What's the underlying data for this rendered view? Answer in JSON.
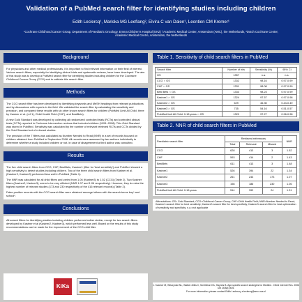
{
  "header": {
    "title": "Validation of a PubMed search filter for identifying studies including children",
    "authors": "Edith Leclercq¹, Mariska MG Leeflang², Elvira C van Dalen¹, Leontien CM Kremer¹",
    "affiliation": "¹Cochrane Childhood Cancer Group, Department of Paediatric Oncology, Emma Children's Hospital (EKZ) / Academic Medical Center, Amsterdam (AMC), the Netherlands, ²Dutch Cochrane Center, Academic Medical Centre, Amsterdam, the Netherlands"
  },
  "background": {
    "heading": "Background",
    "text": "For physicians and other medical professionals, it is important to find relevant information on their field of interest. Various search filters, especially for identifying clinical trials and systematic reviews, have been developed. The aim of this study was to develop a PubMed search filter for identifying studies including children for the Cochrane Childhood Cancer Group (CCG) and to validate this search filter."
  },
  "methods": {
    "heading": "Methods",
    "p1": "The CCG search filter has been developed by identifying keywords and MeSH headings from relevant publications and by discussions with experts in the field. We validated the search filter by calculating the sensitivity and precision, and compared these results with six other known search filters for children (PubMed Limit All Child, three by Kastner et al. (ref 1), Child Health Field (CHF), and BestBets).",
    "p2": "A new Gold Standard was developed by collecting all randomized controlled trials (RCTs) and controlled clinical trials (CCTs) reported in Cochrane Intervention reviews that included children (1951–2008). This Gold Standard was stored in PubMed. Sensitivity was calculated by the number of relevant retrieved RCTs and CCTs divided by the Gold Standard set of relevant studies.",
    "p3": "The precision of the 7 filters was calculated as Number Needed to Read (NNR) in a set of records focused on children obtained from PubMed in September 2008. All records were assessed by two authors individually to determine whether a study included children or not. In case of disagreement a third author was consulted."
  },
  "results": {
    "heading": "Results",
    "p1": "The five child search filters from CCG, CHF, BestBets, Kastner1 (filter for 'best sensitivity') and PubMed showed a high sensitivity to detect studies including children. Two of the three child search filters from Kastner et al. (Kastner2, Kastner3) performed less well in PubMed (Table 1).",
    "p2": "The NNR was calculated for all child filters and varied from 1.06 (Kastner3) to 1.52 (CCG) (Table 2). Two Kastner filters (Kastner2, Kastner3), seem to be very efficient (NNR 1.07 and 1.06 respectively). However, they do miss the highest number of relevant studies (173 and 230 respectively of the 416 relevant records) (Table 2).",
    "p3": "False positive records with the CCG search filter were obtained amongst others with the search terms boy* and school*."
  },
  "conclusions": {
    "heading": "Conclusions",
    "text": "All search filters for identifying studies including children performed rather similar, except for two search filters developed by Kastner et al (Kastner2, Kastner3), which performed less well. Based on the results of this study recommendations can be made for the improvement of the CCG child filter."
  },
  "table1": {
    "heading": "Table 1. Sensitivity of child search filters in PubMed",
    "columns": [
      "Search filter",
      "Number of hits",
      "Sensitivity (%)",
      "95% CI"
    ],
    "rows": [
      [
        "GS",
        "1357",
        "n.a.",
        "n.a."
      ],
      [
        "CCG ∩ GS",
        "1332",
        "98.16",
        "0.97-0.99"
      ],
      [
        "CHF ∩ GS",
        "1331",
        "98.08",
        "0.97-0.99"
      ],
      [
        "Best Bets ∩ GS",
        "1333",
        "98.23",
        "0.97-0.99"
      ],
      [
        "Kastner1 ∩ GS",
        "1324",
        "97.57",
        "0.97-0.98"
      ],
      [
        "Kastner2 ∩ GS",
        "629",
        "46.35",
        "0.44-0.49"
      ],
      [
        "Kastner3 ∩ GS",
        "735",
        "54.16",
        "0.51-0.57"
      ],
      [
        "PubMed limit All Child: 0-18 years ∩ GS",
        "1320",
        "97.27",
        "0.96-0.98"
      ]
    ]
  },
  "table2": {
    "heading": "Table 2. NNR of child search filters in PubMed",
    "group_header": "Retrieved references",
    "filter_header": "Paediatric search filter",
    "columns": [
      "Total",
      "Relevant",
      "Missed",
      "NNR"
    ],
    "rows": [
      [
        "CCG",
        "628",
        "413",
        "3",
        "1.52"
      ],
      [
        "CHF",
        "593",
        "414",
        "2",
        "1.43"
      ],
      [
        "BestBets",
        "611",
        "413",
        "3",
        "1.48"
      ],
      [
        "Kastner1",
        "526",
        "394",
        "22",
        "1.34"
      ],
      [
        "Kastner2",
        "261",
        "243",
        "173",
        "1.07"
      ],
      [
        "Kastner3",
        "198",
        "186",
        "230",
        "1.06"
      ],
      [
        "PubMed limit All Child: 0-18 years",
        "514",
        "392",
        "24",
        "1.31"
      ]
    ]
  },
  "abbreviations": "Abbreviations: GS= Gold Standard; CCG=Childhood Cancer Group; CHF=Child Health Field; NNR=Number Needed to Read; Kastner1=search filter for best sensitivity; Kastner2=search filter for best specificity; Kastner3=search filter for best optimization of sensitivity and specificity; n.a.=not applicable",
  "references": {
    "ref1": "1. Kastner M, Wilczynski NL, Walker-Dilks C, McKibbon KA, Haynes B. Age-specific search strategies for Medline. J Med Internet Res. 2006 Oct 25;8(4):e25.",
    "contact": "For more information, please contact Edith Leclercq, e.leclercq@amc.uva.nl"
  },
  "logos": {
    "logo1": "KiKa"
  }
}
